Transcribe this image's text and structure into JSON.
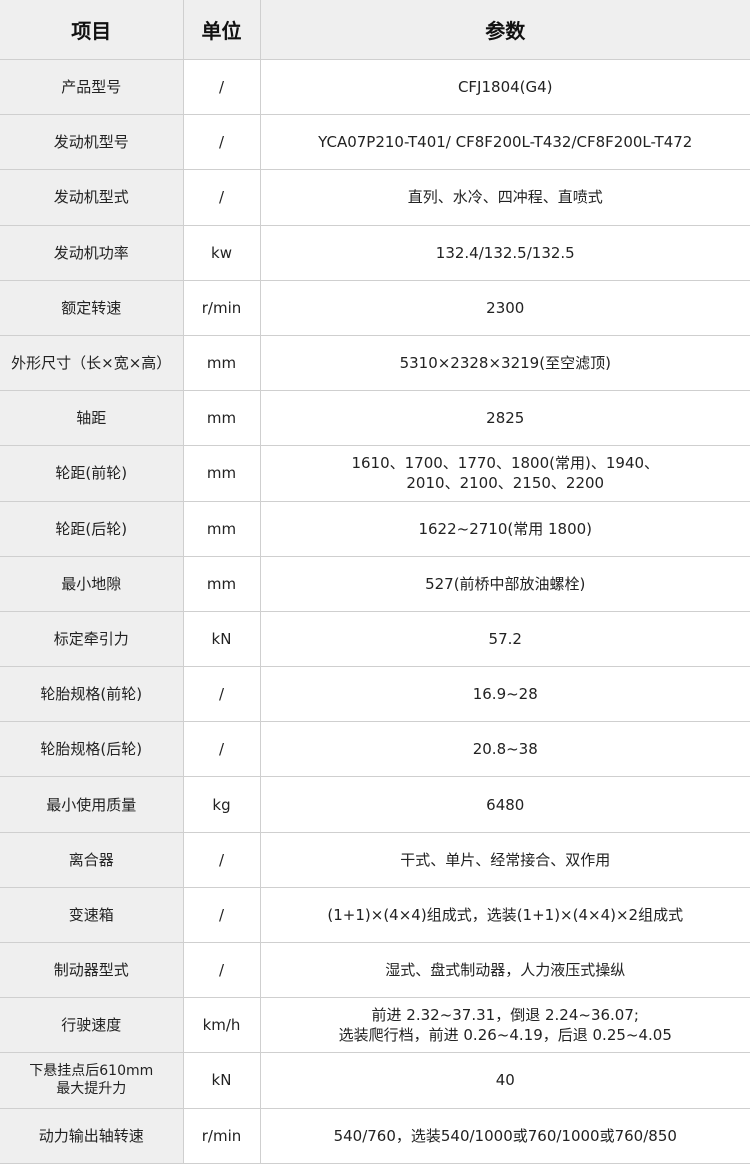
{
  "headers": [
    "项目",
    "单位",
    "参数"
  ],
  "rows": [
    {
      "item": "产品型号",
      "unit": "/",
      "value": "CFJ1804(G4)"
    },
    {
      "item": "发动机型号",
      "unit": "/",
      "value": "YCA07P210-T401/ CF8F200L-T432/CF8F200L-T472"
    },
    {
      "item": "发动机型式",
      "unit": "/",
      "value": "直列、水冷、四冲程、直喷式"
    },
    {
      "item": "发动机功率",
      "unit": "kw",
      "value": "132.4/132.5/132.5"
    },
    {
      "item": "额定转速",
      "unit": "r/min",
      "value": "2300"
    },
    {
      "item": "外形尺寸（长×宽×高）",
      "unit": "mm",
      "value": "5310×2328×3219(至空滤顶)"
    },
    {
      "item": "轴距",
      "unit": "mm",
      "value": "2825"
    },
    {
      "item": "轮距(前轮)",
      "unit": "mm",
      "value": "1610、1700、1770、1800(常用)、1940、\n2010、2100、2150、2200"
    },
    {
      "item": "轮距(后轮)",
      "unit": "mm",
      "value": "1622~2710(常用 1800)"
    },
    {
      "item": "最小地隙",
      "unit": "mm",
      "value": "527(前桥中部放油螺栓)"
    },
    {
      "item": "标定牵引力",
      "unit": "kN",
      "value": "57.2"
    },
    {
      "item": "轮胎规格(前轮)",
      "unit": "/",
      "value": "16.9~28"
    },
    {
      "item": "轮胎规格(后轮)",
      "unit": "/",
      "value": "20.8~38"
    },
    {
      "item": "最小使用质量",
      "unit": "kg",
      "value": "6480"
    },
    {
      "item": "离合器",
      "unit": "/",
      "value": "干式、单片、经常接合、双作用"
    },
    {
      "item": "变速箱",
      "unit": "/",
      "value": "(1+1)×(4×4)组成式，选装(1+1)×(4×4)×2组成式"
    },
    {
      "item": "制动器型式",
      "unit": "/",
      "value": "湿式、盘式制动器，人力液压式操纵"
    },
    {
      "item": "行驶速度",
      "unit": "km/h",
      "value": "前进 2.32~37.31，倒退 2.24~36.07;\n选装爬行档，前进 0.26~4.19，后退 0.25~4.05"
    },
    {
      "item": "下悬挂点后610mm\n最大提升力",
      "unit": "kN",
      "value": "40"
    },
    {
      "item": "动力输出轴转速",
      "unit": "r/min",
      "value": "540/760，选装540/1000或760/1000或760/850"
    }
  ]
}
